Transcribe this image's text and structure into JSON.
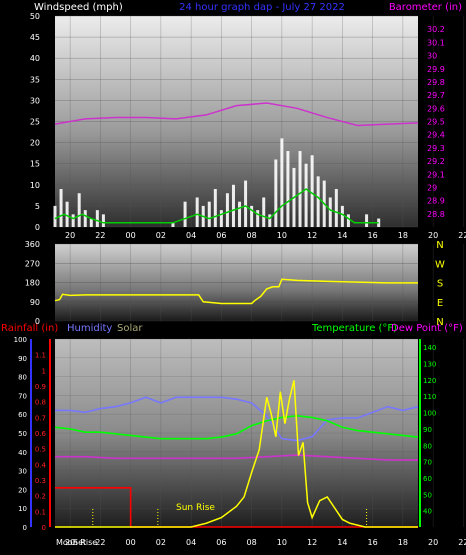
{
  "header": {
    "windspeed_label": "Windspeed (mph)",
    "date_label": "24 hour graph dap - July 27 2022",
    "barometer_label": "Barometer (in)"
  },
  "time_ticks": [
    "20",
    "22",
    "00",
    "02",
    "04",
    "06",
    "08",
    "10",
    "12",
    "14",
    "16",
    "18",
    "20",
    "22",
    "00"
  ],
  "direction_letters": [
    "N",
    "W",
    "S",
    "E",
    "N"
  ],
  "bottom_header": {
    "rainfall_label": "Rainfall (in)",
    "humidity_label": "Humidity",
    "solar_label": "Solar",
    "temperature_label": "Temperature (°F)",
    "dewpoint_label": "Dew Point (°F)"
  },
  "annotations": {
    "sunrise_label": "Sun Rise",
    "moonrise_label": "Moon Rise",
    "moonset_label": "Set"
  },
  "colors": {
    "wind_gust": "#ffffff",
    "wind_avg": "#00cc00",
    "barometer": "#cc33cc",
    "direction": "#ffff00",
    "rainfall": "#ff0000",
    "humidity": "#7777ff",
    "solar": "#ffff00",
    "temperature": "#00ff00",
    "dewpoint": "#cc33cc",
    "label_green": "#00ff00",
    "label_blue": "#3333ff",
    "label_magenta": "#ff00ff"
  },
  "chart_data": [
    {
      "type": "area",
      "title": "24 hour graph dap - July 27 2022",
      "x_range_hours": [
        19,
        43
      ],
      "x_ticks": [
        "20",
        "22",
        "00",
        "02",
        "04",
        "06",
        "08",
        "10",
        "12",
        "14",
        "16",
        "18",
        "20",
        "22",
        "00"
      ],
      "ylabel": "Windspeed (mph)",
      "ylim": [
        0,
        50
      ],
      "y_ticks": [
        0,
        5,
        10,
        15,
        20,
        25,
        30,
        35,
        40,
        45,
        50
      ],
      "y2label": "Barometer (in)",
      "y2lim": [
        28.7,
        30.3
      ],
      "y2_ticks": [
        "28.8",
        "28.9",
        "29",
        "29.1",
        "29.2",
        "29.3",
        "29.4",
        "29.5",
        "29.6",
        "29.7",
        "29.8",
        "29.9",
        "30",
        "30.1",
        "30.2"
      ],
      "series": [
        {
          "name": "Windspeed (mph)",
          "x": [
            19.0,
            19.4,
            19.8,
            20.2,
            20.6,
            21.0,
            21.4,
            21.8,
            22.2,
            26.8,
            27.6,
            28.4,
            28.8,
            29.2,
            29.6,
            30.0,
            30.4,
            30.8,
            31.2,
            31.6,
            32.0,
            32.4,
            32.8,
            33.2,
            33.6,
            34.0,
            34.4,
            34.8,
            35.2,
            35.6,
            36.0,
            36.4,
            36.8,
            37.2,
            37.6,
            38.0,
            38.4,
            38.8,
            39.6,
            40.4
          ],
          "values": [
            5,
            9,
            6,
            3,
            8,
            4,
            2,
            4,
            3,
            1,
            6,
            7,
            5,
            6,
            9,
            4,
            8,
            10,
            6,
            11,
            5,
            4,
            7,
            3,
            16,
            21,
            18,
            14,
            18,
            15,
            17,
            12,
            11,
            7,
            9,
            5,
            3,
            0,
            3,
            2
          ]
        },
        {
          "name": "Wind average",
          "x": [
            19.0,
            19.6,
            20.2,
            20.8,
            21.4,
            22.2,
            26.8,
            27.6,
            28.4,
            29.2,
            30.0,
            30.8,
            31.6,
            32.4,
            33.2,
            34.0,
            34.8,
            35.6,
            36.4,
            37.2,
            38.0,
            38.8,
            40.4
          ],
          "values": [
            2,
            3,
            2,
            3,
            2,
            1,
            1,
            2,
            3,
            2,
            3,
            4,
            5,
            3,
            2,
            5,
            7,
            9,
            7,
            4,
            3,
            1,
            1
          ]
        },
        {
          "name": "Barometer (in)",
          "axis": "y2",
          "x": [
            19,
            21,
            23,
            25,
            27,
            29,
            31,
            33,
            35,
            37,
            39,
            41,
            43
          ],
          "values": [
            29.48,
            29.52,
            29.53,
            29.53,
            29.52,
            29.55,
            29.62,
            29.64,
            29.6,
            29.53,
            29.47,
            29.48,
            29.49
          ]
        }
      ]
    },
    {
      "type": "line",
      "x_range_hours": [
        19,
        43
      ],
      "ylim": [
        0,
        360
      ],
      "y_ticks": [
        0,
        90,
        180,
        270,
        360
      ],
      "series": [
        {
          "name": "Wind direction",
          "x": [
            19.0,
            19.3,
            19.5,
            20.0,
            21.0,
            23.0,
            25.0,
            27.0,
            28.5,
            28.8,
            30.0,
            31.0,
            32.0,
            32.2,
            32.4,
            32.6,
            33.0,
            33.4,
            33.8,
            34.0,
            35.0,
            37.0,
            39.0,
            41.0,
            43.0
          ],
          "values": [
            95,
            100,
            125,
            120,
            122,
            122,
            122,
            122,
            122,
            90,
            82,
            82,
            82,
            95,
            105,
            115,
            150,
            160,
            160,
            195,
            190,
            185,
            182,
            178,
            178
          ]
        }
      ]
    },
    {
      "type": "line",
      "x_range_hours": [
        19,
        43
      ],
      "y_rain_lim": [
        0,
        1.2
      ],
      "y_rain_ticks": [
        "0",
        "0.1",
        "0.2",
        "0.3",
        "0.4",
        "0.5",
        "0.6",
        "0.7",
        "0.8",
        "0.9",
        "1",
        "1.1"
      ],
      "y_humidity_lim": [
        0,
        100
      ],
      "y_humidity_ticks": [
        0,
        10,
        20,
        30,
        40,
        50,
        60,
        70,
        80,
        90,
        100
      ],
      "y_temp_lim": [
        30,
        145
      ],
      "y_temp_ticks": [
        40,
        50,
        60,
        70,
        80,
        90,
        100,
        110,
        120,
        130,
        140
      ],
      "series": [
        {
          "name": "Rainfall (in)",
          "axis": "rain",
          "x": [
            19.0,
            24.0,
            24.0,
            43.0
          ],
          "values": [
            0.25,
            0.25,
            0.0,
            0.0
          ]
        },
        {
          "name": "Humidity",
          "axis": "humidity",
          "x": [
            19,
            20,
            21,
            22,
            23,
            24,
            25,
            26,
            27,
            28,
            29,
            30,
            31,
            32,
            33,
            34,
            35,
            36,
            37,
            38,
            39,
            40,
            41,
            42,
            43
          ],
          "values": [
            62,
            62,
            61,
            63,
            64,
            66,
            69,
            66,
            69,
            69,
            69,
            69,
            68,
            66,
            59,
            47,
            46,
            48,
            57,
            58,
            58,
            61,
            64,
            62,
            64
          ]
        },
        {
          "name": "Temperature (°F)",
          "axis": "temp",
          "x": [
            19,
            20,
            21,
            22,
            23,
            24,
            25,
            26,
            27,
            28,
            29,
            30,
            31,
            32,
            33,
            34,
            35,
            36,
            37,
            38,
            39,
            40,
            41,
            42,
            43
          ],
          "values": [
            91,
            90,
            88,
            88,
            87,
            86,
            85,
            84,
            84,
            84,
            84,
            85,
            87,
            92,
            95,
            97,
            98,
            97,
            95,
            91,
            89,
            88,
            87,
            86,
            85
          ]
        },
        {
          "name": "Dew Point (°F)",
          "axis": "temp",
          "x": [
            19,
            21,
            23,
            25,
            27,
            29,
            31,
            33,
            35,
            37,
            39,
            41,
            43
          ],
          "values": [
            73,
            73,
            72,
            72,
            72,
            72,
            72,
            73,
            74,
            73,
            72,
            71,
            71
          ]
        },
        {
          "name": "Solar",
          "axis": "humidity",
          "x": [
            19,
            28.0,
            29.0,
            30.0,
            31.0,
            31.5,
            32.0,
            32.5,
            33.0,
            33.3,
            33.6,
            33.9,
            34.2,
            34.5,
            34.8,
            35.1,
            35.4,
            35.7,
            36.0,
            36.5,
            37.0,
            37.5,
            38.0,
            38.5,
            39.0,
            39.5,
            43
          ],
          "values": [
            0,
            0,
            2,
            5,
            11,
            16,
            29,
            41,
            69,
            60,
            48,
            72,
            55,
            68,
            78,
            38,
            45,
            13,
            5,
            14,
            16,
            10,
            4,
            2,
            1,
            0,
            0
          ]
        }
      ]
    }
  ]
}
